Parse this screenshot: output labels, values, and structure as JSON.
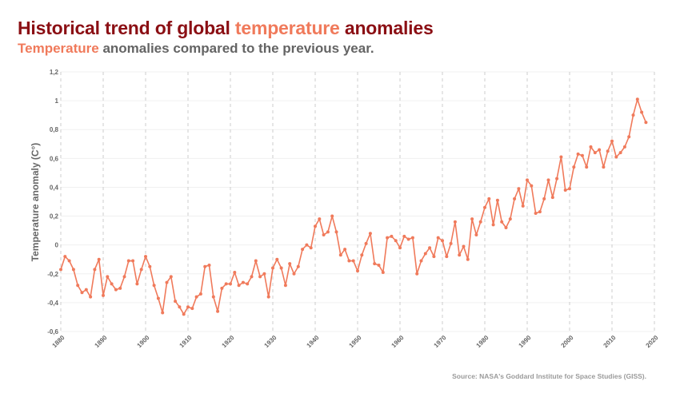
{
  "header": {
    "title_part1": "Historical trend of global ",
    "title_highlight": "temperature",
    "title_part2": " anomalies",
    "subtitle_highlight": "Temperature",
    "subtitle_rest": " anomalies compared to the previous year."
  },
  "source": "Source: NASA's Goddard Institute for Space Studies (GISS).",
  "colors": {
    "title": "#8b0f14",
    "accent": "#f07a5b",
    "subtitle": "#646464",
    "grid": "#cccccc"
  },
  "chart_data": {
    "type": "line",
    "ylabel": "Temperature anomaly (C°)",
    "xlim": [
      1880,
      2020
    ],
    "ylim": [
      -0.6,
      1.2
    ],
    "x_ticks": [
      1880,
      1890,
      1900,
      1910,
      1920,
      1930,
      1940,
      1950,
      1960,
      1970,
      1980,
      1990,
      2000,
      2010,
      2020
    ],
    "y_ticks": [
      "-0,6",
      "-0,4",
      "-0,2",
      "0",
      "0,2",
      "0,4",
      "0,6",
      "0,8",
      "1",
      "1,2"
    ],
    "y_tick_values": [
      -0.6,
      -0.4,
      -0.2,
      0,
      0.2,
      0.4,
      0.6,
      0.8,
      1.0,
      1.2
    ],
    "grid": "dashed vertical",
    "series": [
      {
        "color": "#f07a5b",
        "x": [
          1880,
          1881,
          1882,
          1883,
          1884,
          1885,
          1886,
          1887,
          1888,
          1889,
          1890,
          1891,
          1892,
          1893,
          1894,
          1895,
          1896,
          1897,
          1898,
          1899,
          1900,
          1901,
          1902,
          1903,
          1904,
          1905,
          1906,
          1907,
          1908,
          1909,
          1910,
          1911,
          1912,
          1913,
          1914,
          1915,
          1916,
          1917,
          1918,
          1919,
          1920,
          1921,
          1922,
          1923,
          1924,
          1925,
          1926,
          1927,
          1928,
          1929,
          1930,
          1931,
          1932,
          1933,
          1934,
          1935,
          1936,
          1937,
          1938,
          1939,
          1940,
          1941,
          1942,
          1943,
          1944,
          1945,
          1946,
          1947,
          1948,
          1949,
          1950,
          1951,
          1952,
          1953,
          1954,
          1955,
          1956,
          1957,
          1958,
          1959,
          1960,
          1961,
          1962,
          1963,
          1964,
          1965,
          1966,
          1967,
          1968,
          1969,
          1970,
          1971,
          1972,
          1973,
          1974,
          1975,
          1976,
          1977,
          1978,
          1979,
          1980,
          1981,
          1982,
          1983,
          1984,
          1985,
          1986,
          1987,
          1988,
          1989,
          1990,
          1991,
          1992,
          1993,
          1994,
          1995,
          1996,
          1997,
          1998,
          1999,
          2000,
          2001,
          2002,
          2003,
          2004,
          2005,
          2006,
          2007,
          2008,
          2009,
          2010,
          2011,
          2012,
          2013,
          2014,
          2015,
          2016,
          2017,
          2018
        ],
        "values": [
          -0.17,
          -0.08,
          -0.11,
          -0.17,
          -0.28,
          -0.33,
          -0.31,
          -0.36,
          -0.17,
          -0.1,
          -0.35,
          -0.22,
          -0.27,
          -0.31,
          -0.3,
          -0.22,
          -0.11,
          -0.11,
          -0.27,
          -0.17,
          -0.08,
          -0.15,
          -0.28,
          -0.37,
          -0.47,
          -0.26,
          -0.22,
          -0.39,
          -0.43,
          -0.48,
          -0.43,
          -0.44,
          -0.36,
          -0.34,
          -0.15,
          -0.14,
          -0.36,
          -0.46,
          -0.3,
          -0.27,
          -0.27,
          -0.19,
          -0.28,
          -0.26,
          -0.27,
          -0.22,
          -0.11,
          -0.22,
          -0.2,
          -0.36,
          -0.16,
          -0.1,
          -0.16,
          -0.28,
          -0.13,
          -0.2,
          -0.15,
          -0.03,
          0.0,
          -0.02,
          0.13,
          0.18,
          0.07,
          0.09,
          0.2,
          0.09,
          -0.07,
          -0.03,
          -0.11,
          -0.11,
          -0.18,
          -0.07,
          0.01,
          0.08,
          -0.13,
          -0.14,
          -0.19,
          0.05,
          0.06,
          0.03,
          -0.02,
          0.06,
          0.04,
          0.05,
          -0.2,
          -0.11,
          -0.06,
          -0.02,
          -0.08,
          0.05,
          0.03,
          -0.08,
          0.01,
          0.16,
          -0.07,
          -0.01,
          -0.1,
          0.18,
          0.07,
          0.16,
          0.26,
          0.32,
          0.14,
          0.31,
          0.16,
          0.12,
          0.18,
          0.32,
          0.39,
          0.27,
          0.45,
          0.41,
          0.22,
          0.23,
          0.32,
          0.45,
          0.33,
          0.46,
          0.61,
          0.38,
          0.39,
          0.54,
          0.63,
          0.62,
          0.54,
          0.68,
          0.64,
          0.66,
          0.54,
          0.65,
          0.72,
          0.61,
          0.64,
          0.68,
          0.75,
          0.9,
          1.01,
          0.92,
          0.85
        ]
      }
    ]
  }
}
